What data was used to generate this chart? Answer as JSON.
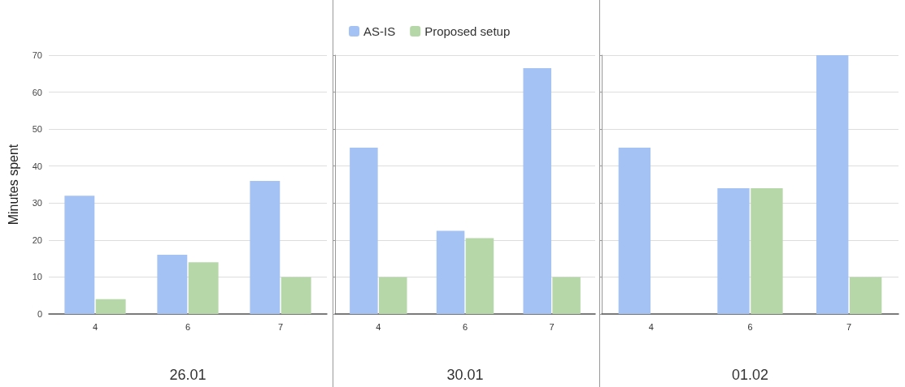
{
  "chart_data": [
    {
      "type": "bar",
      "categories": [
        "4",
        "6",
        "7"
      ],
      "ylabel": "Minutes spent",
      "xlabel": "26.01",
      "ylim": [
        0,
        70
      ],
      "yticks": [
        0,
        10,
        20,
        30,
        40,
        50,
        60,
        70
      ],
      "grid": "y",
      "legend": false,
      "series": [
        {
          "color": "#a4c2f4",
          "values": [
            32,
            16,
            36
          ]
        },
        {
          "color": "#b6d7a8",
          "values": [
            4,
            14,
            10
          ]
        }
      ]
    },
    {
      "type": "bar",
      "categories": [
        "4",
        "6",
        "7"
      ],
      "xlabel": "30.01",
      "ylim": [
        0,
        70
      ],
      "yticks": [
        0,
        10,
        20,
        30,
        40,
        50,
        60,
        70
      ],
      "grid": "y",
      "legend": "top left",
      "tick_labels": "x",
      "series": [
        {
          "name": "AS-IS",
          "color": "#a4c2f4",
          "values": [
            45,
            22.5,
            66.5
          ]
        },
        {
          "name": "Proposed setup",
          "color": "#b6d7a8",
          "values": [
            10,
            20.5,
            10
          ]
        }
      ]
    },
    {
      "type": "bar",
      "categories": [
        "4",
        "6",
        "7"
      ],
      "xlabel": "01.02",
      "ylim": [
        0,
        70
      ],
      "yticks": [
        0,
        10,
        20,
        30,
        40,
        50,
        60,
        70
      ],
      "grid": "y",
      "legend": false,
      "tick_labels": "x",
      "series": [
        {
          "color": "#a4c2f4",
          "values": [
            45,
            34,
            70
          ]
        },
        {
          "color": "#b6d7a8",
          "values": [
            null,
            34,
            10
          ]
        }
      ]
    }
  ]
}
